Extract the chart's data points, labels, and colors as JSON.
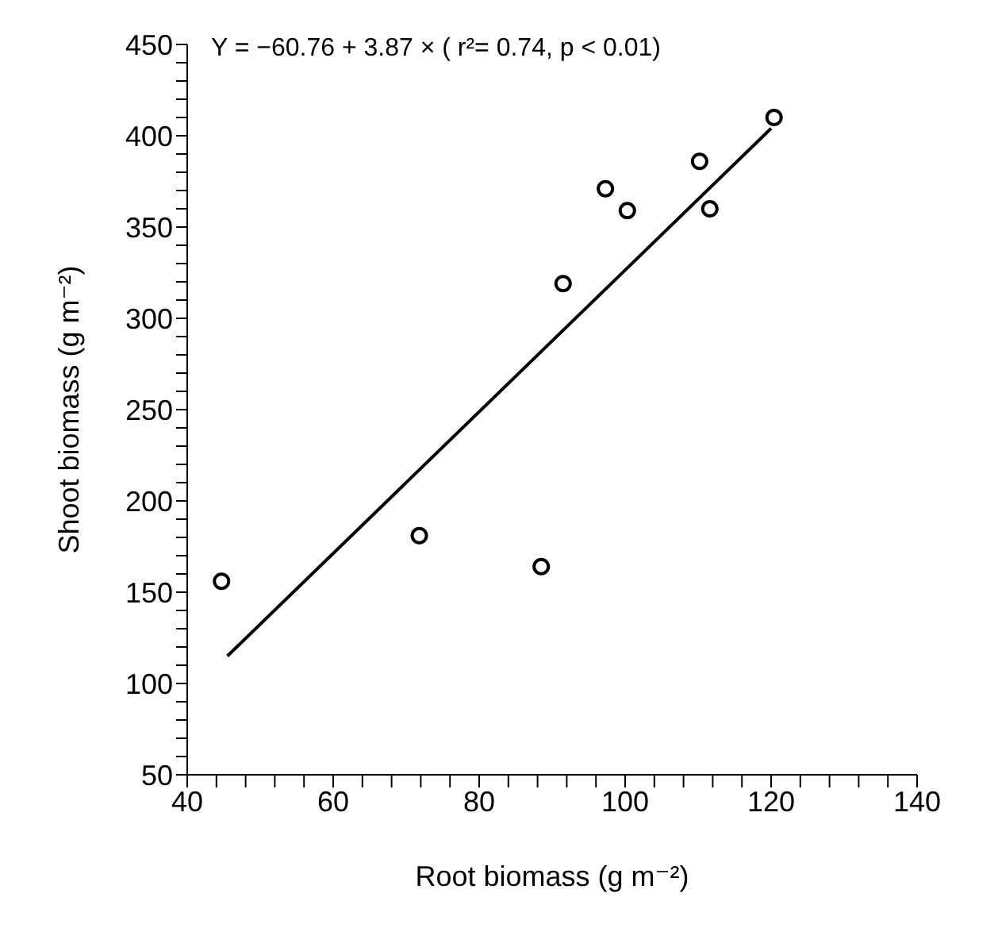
{
  "chart_data": {
    "type": "scatter",
    "xlabel": "Root biomass (g m⁻²)",
    "ylabel": "Shoot biomass (g m⁻²)",
    "annotations": [
      "Y = −60.76 + 3.87 × ( r²= 0.74, p < 0.01)"
    ],
    "xlim": [
      40,
      140
    ],
    "ylim": [
      50,
      450
    ],
    "xticks": [
      40,
      {
        "value": 44,
        "label": null
      },
      {
        "value": 48,
        "label": null
      },
      {
        "value": 52,
        "label": null
      },
      {
        "value": 56,
        "label": null
      },
      60,
      {
        "value": 64,
        "label": null
      },
      {
        "value": 68,
        "label": null
      },
      {
        "value": 72,
        "label": null
      },
      {
        "value": 76,
        "label": null
      },
      80,
      {
        "value": 84,
        "label": null
      },
      {
        "value": 88,
        "label": null
      },
      {
        "value": 92,
        "label": null
      },
      {
        "value": 96,
        "label": null
      },
      100,
      {
        "value": 104,
        "label": null
      },
      {
        "value": 108,
        "label": null
      },
      {
        "value": 112,
        "label": null
      },
      {
        "value": 116,
        "label": null
      },
      120,
      {
        "value": 124,
        "label": null
      },
      {
        "value": 128,
        "label": null
      },
      {
        "value": 132,
        "label": null
      },
      {
        "value": 136,
        "label": null
      },
      140
    ],
    "yticks": [
      50,
      {
        "value": 60,
        "label": null
      },
      {
        "value": 70,
        "label": null
      },
      {
        "value": 80,
        "label": null
      },
      {
        "value": 90,
        "label": null
      },
      100,
      {
        "value": 110,
        "label": null
      },
      {
        "value": 120,
        "label": null
      },
      {
        "value": 130,
        "label": null
      },
      {
        "value": 140,
        "label": null
      },
      150,
      {
        "value": 160,
        "label": null
      },
      {
        "value": 170,
        "label": null
      },
      {
        "value": 180,
        "label": null
      },
      {
        "value": 190,
        "label": null
      },
      200,
      {
        "value": 210,
        "label": null
      },
      {
        "value": 220,
        "label": null
      },
      {
        "value": 230,
        "label": null
      },
      {
        "value": 240,
        "label": null
      },
      250,
      {
        "value": 260,
        "label": null
      },
      {
        "value": 270,
        "label": null
      },
      {
        "value": 280,
        "label": null
      },
      {
        "value": 290,
        "label": null
      },
      300,
      {
        "value": 310,
        "label": null
      },
      {
        "value": 320,
        "label": null
      },
      {
        "value": 330,
        "label": null
      },
      {
        "value": 340,
        "label": null
      },
      350,
      {
        "value": 360,
        "label": null
      },
      {
        "value": 370,
        "label": null
      },
      {
        "value": 380,
        "label": null
      },
      {
        "value": 390,
        "label": null
      },
      400,
      {
        "value": 410,
        "label": null
      },
      {
        "value": 420,
        "label": null
      },
      {
        "value": 430,
        "label": null
      },
      {
        "value": 440,
        "label": null
      },
      450
    ],
    "grid": false,
    "marker": "circle",
    "series": [
      {
        "color": "#000000",
        "x": [
          44.7,
          71.8,
          88.5,
          91.5,
          97.3,
          100.3,
          110.2,
          111.6,
          120.4
        ],
        "values": [
          156,
          181,
          164,
          319,
          371,
          359,
          386,
          360,
          410
        ]
      },
      {
        "type": "line",
        "color": "#000000",
        "marker": "none",
        "line_style": "solid",
        "x": [
          45.5,
          120
        ],
        "values": [
          115,
          404
        ]
      }
    ]
  }
}
